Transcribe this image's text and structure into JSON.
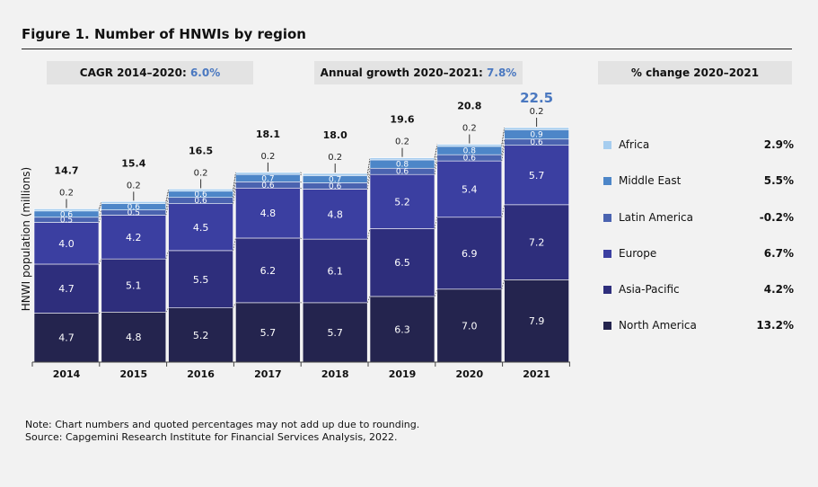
{
  "title": "Figure 1. Number of HNWIs by region",
  "cagr": {
    "label": "CAGR 2014–2020:",
    "value": "6.0%"
  },
  "annual_growth": {
    "label": "Annual growth 2020–2021:",
    "value": "7.8%"
  },
  "pct_change": {
    "label": "% change 2020–2021"
  },
  "legend": [
    {
      "name": "Africa",
      "change": "2.9%"
    },
    {
      "name": "Middle East",
      "change": "5.5%"
    },
    {
      "name": "Latin America",
      "change": "-0.2%"
    },
    {
      "name": "Europe",
      "change": "6.7%"
    },
    {
      "name": "Asia-Pacific",
      "change": "4.2%"
    },
    {
      "name": "North America",
      "change": "13.2%"
    }
  ],
  "colors": {
    "North America": "#24244e",
    "Asia-Pacific": "#2e2e7c",
    "Europe": "#3b3fa1",
    "Latin America": "#4a63b0",
    "Middle East": "#4d86c8",
    "Africa": "#a6cdef",
    "highlight": "#4a78c0"
  },
  "notes": {
    "note": "Note: Chart numbers and quoted percentages may not add up due to rounding.",
    "source": "Source: Capgemini Research Institute for Financial Services Analysis, 2022."
  },
  "chart_data": {
    "type": "bar",
    "stacked": true,
    "ylabel": "HNWI population (millions)",
    "xlabel": "",
    "categories": [
      "2014",
      "2015",
      "2016",
      "2017",
      "2018",
      "2019",
      "2020",
      "2021"
    ],
    "series": [
      {
        "name": "North America",
        "values": [
          4.7,
          4.8,
          5.2,
          5.7,
          5.7,
          6.3,
          7.0,
          7.9
        ]
      },
      {
        "name": "Asia-Pacific",
        "values": [
          4.7,
          5.1,
          5.5,
          6.2,
          6.1,
          6.5,
          6.9,
          7.2
        ]
      },
      {
        "name": "Europe",
        "values": [
          4.0,
          4.2,
          4.5,
          4.8,
          4.8,
          5.2,
          5.4,
          5.7
        ]
      },
      {
        "name": "Latin America",
        "values": [
          0.5,
          0.5,
          0.6,
          0.6,
          0.6,
          0.6,
          0.6,
          0.6
        ]
      },
      {
        "name": "Middle East",
        "values": [
          0.6,
          0.6,
          0.6,
          0.7,
          0.7,
          0.8,
          0.8,
          0.9
        ]
      },
      {
        "name": "Africa",
        "values": [
          0.2,
          0.2,
          0.2,
          0.2,
          0.2,
          0.2,
          0.2,
          0.2
        ]
      }
    ],
    "totals": [
      "14.7",
      "15.4",
      "16.5",
      "18.1",
      "18.0",
      "19.6",
      "20.8",
      "22.5"
    ],
    "ylim": [
      0,
      23
    ]
  }
}
